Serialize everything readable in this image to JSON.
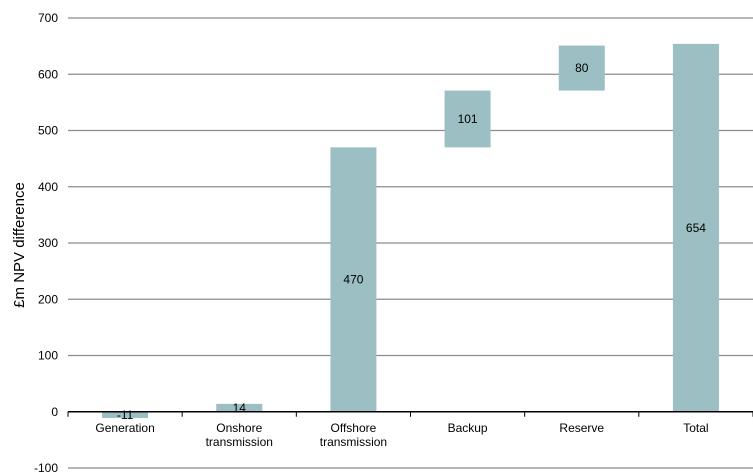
{
  "chart_data": {
    "type": "bar",
    "subtype": "waterfall",
    "ylabel": "£m NPV difference",
    "xlabel": "",
    "ylim": [
      -100,
      700
    ],
    "yticks": [
      -100,
      0,
      100,
      200,
      300,
      400,
      500,
      600,
      700
    ],
    "grid": true,
    "bar_color": "#9bbfc2",
    "categories": [
      [
        "Generation"
      ],
      [
        "Onshore",
        "transmission"
      ],
      [
        "Offshore",
        "transmission"
      ],
      [
        "Backup"
      ],
      [
        "Reserve"
      ],
      [
        "Total"
      ]
    ],
    "bars": [
      {
        "base": 0,
        "value": -11,
        "label": "-11"
      },
      {
        "base": 0,
        "value": 14,
        "label": "14"
      },
      {
        "base": 0,
        "value": 470,
        "label": "470"
      },
      {
        "base": 470,
        "value": 101,
        "label": "101"
      },
      {
        "base": 571,
        "value": 80,
        "label": "80"
      },
      {
        "base": 0,
        "value": 654,
        "label": "654"
      }
    ]
  }
}
